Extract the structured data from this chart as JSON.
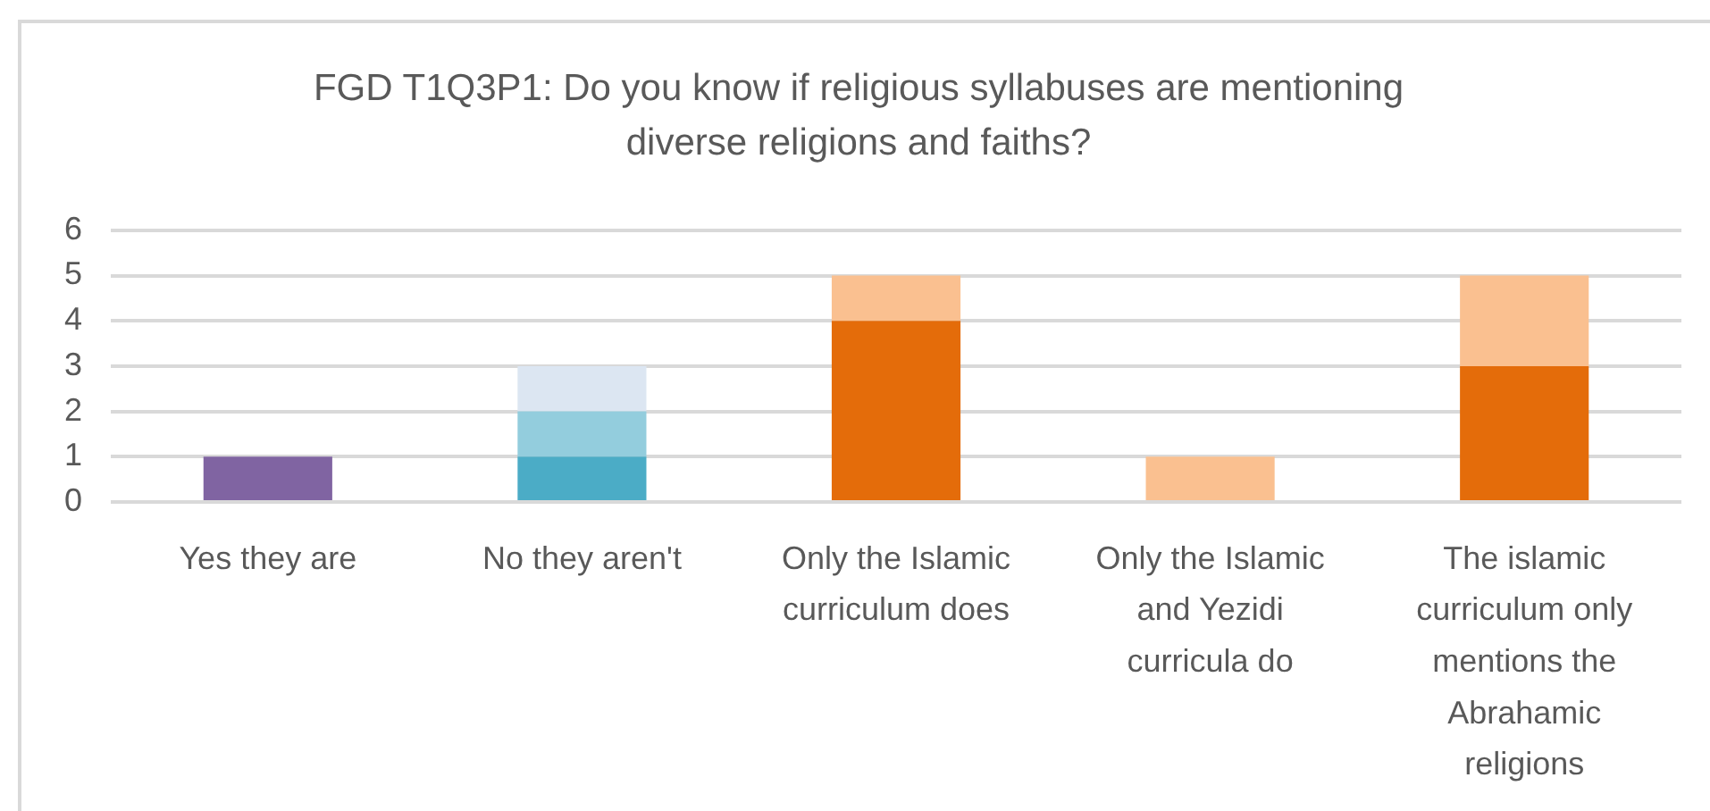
{
  "chart_data": {
    "type": "bar",
    "title": "FGD T1Q3P1: Do you know if religious syllabuses are mentioning diverse religions and faiths?",
    "categories": [
      "Yes they are",
      "No they aren't",
      "Only the Islamic curriculum does",
      "Only the Islamic and Yezidi curricula do",
      "The islamic curriculum only mentions the Abrahamic religions"
    ],
    "stacked": true,
    "series": [
      {
        "color": "#8064a2",
        "values": [
          1,
          null,
          null,
          null,
          null
        ]
      },
      {
        "color": "#4bacc6",
        "values": [
          null,
          1,
          null,
          null,
          null
        ]
      },
      {
        "color": "#93cddd",
        "values": [
          null,
          1,
          null,
          null,
          null
        ]
      },
      {
        "color": "#dce6f2",
        "values": [
          null,
          1,
          null,
          null,
          null
        ]
      },
      {
        "color": "#e46c0a",
        "values": [
          null,
          null,
          4,
          null,
          3
        ]
      },
      {
        "color": "#fac090",
        "values": [
          null,
          null,
          1,
          1,
          2
        ]
      }
    ],
    "ylim": [
      0,
      6
    ],
    "yticks": [
      0,
      1,
      2,
      3,
      4,
      5,
      6
    ],
    "grid": "y"
  }
}
